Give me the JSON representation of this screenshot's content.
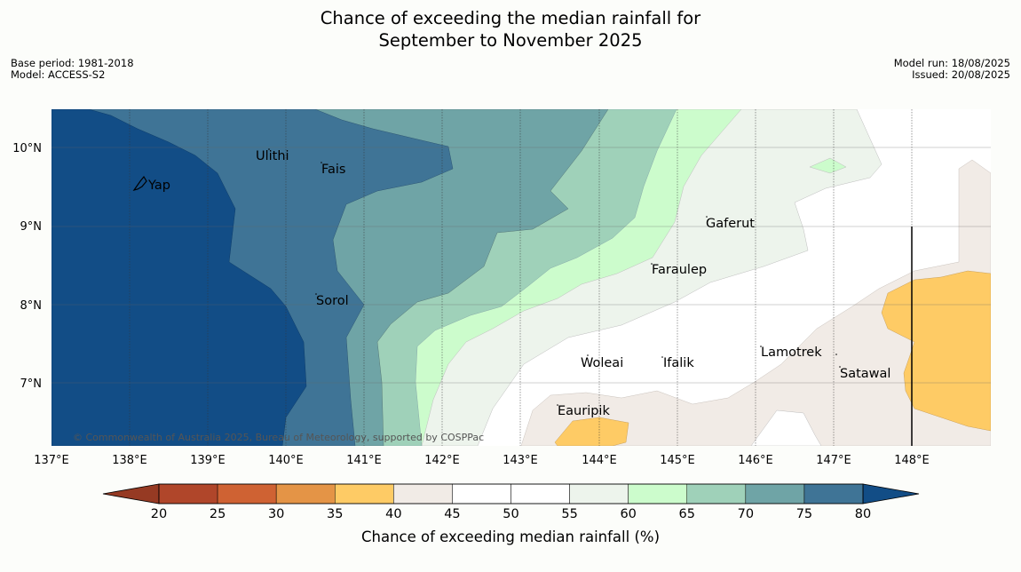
{
  "title": {
    "line1": "Chance of exceeding the median rainfall for",
    "line2": "September to November 2025"
  },
  "meta": {
    "base_period": "Base period: 1981-2018",
    "model": "Model: ACCESS-S2",
    "model_run": "Model run: 18/08/2025",
    "issued": "Issued: 20/08/2025"
  },
  "map": {
    "lon_ticks": [
      "137°E",
      "138°E",
      "139°E",
      "140°E",
      "141°E",
      "142°E",
      "143°E",
      "144°E",
      "145°E",
      "146°E",
      "147°E",
      "148°E"
    ],
    "lat_ticks": [
      "10°N",
      "9°N",
      "8°N",
      "7°N"
    ],
    "places": [
      "Yap",
      "Ulithi",
      "Fais",
      "Gaferut",
      "Faraulep",
      "Sorol",
      "Woleai",
      "Ifalik",
      "Lamotrek",
      "Satawal",
      "Eauripik"
    ],
    "copyright": "© Commonwealth of Australia 2025, Bureau of Meteorology, supported by COSPPac"
  },
  "colorbar": {
    "labels": [
      "20",
      "25",
      "30",
      "35",
      "40",
      "45",
      "50",
      "55",
      "60",
      "65",
      "70",
      "75",
      "80"
    ],
    "title": "Chance of exceeding median rainfall (%)",
    "colors": [
      "#b0462a",
      "#cf6233",
      "#e49446",
      "#fecb65",
      "#f1ebe6",
      "#ffffff",
      "#ffffff",
      "#edf4ec",
      "#ccfccc",
      "#9fd1b9",
      "#6fa4a6",
      "#3f7496"
    ],
    "under_color": "#963a23",
    "over_color": "#124d86"
  }
}
